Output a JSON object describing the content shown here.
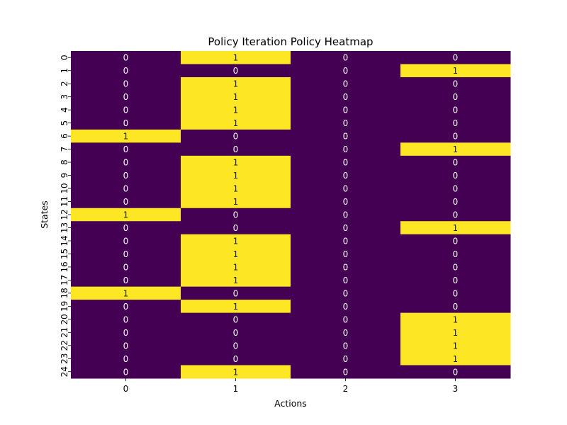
{
  "chart_data": {
    "type": "heatmap",
    "title": "Policy Iteration Policy Heatmap",
    "xlabel": "Actions",
    "ylabel": "States",
    "x_categories": [
      "0",
      "1",
      "2",
      "3"
    ],
    "y_categories": [
      "0",
      "1",
      "2",
      "3",
      "4",
      "5",
      "6",
      "7",
      "8",
      "9",
      "10",
      "11",
      "12",
      "13",
      "14",
      "15",
      "16",
      "17",
      "18",
      "19",
      "20",
      "21",
      "22",
      "23",
      "24"
    ],
    "values": [
      [
        0,
        1,
        0,
        0
      ],
      [
        0,
        0,
        0,
        1
      ],
      [
        0,
        1,
        0,
        0
      ],
      [
        0,
        1,
        0,
        0
      ],
      [
        0,
        1,
        0,
        0
      ],
      [
        0,
        1,
        0,
        0
      ],
      [
        1,
        0,
        0,
        0
      ],
      [
        0,
        0,
        0,
        1
      ],
      [
        0,
        1,
        0,
        0
      ],
      [
        0,
        1,
        0,
        0
      ],
      [
        0,
        1,
        0,
        0
      ],
      [
        0,
        1,
        0,
        0
      ],
      [
        1,
        0,
        0,
        0
      ],
      [
        0,
        0,
        0,
        1
      ],
      [
        0,
        1,
        0,
        0
      ],
      [
        0,
        1,
        0,
        0
      ],
      [
        0,
        1,
        0,
        0
      ],
      [
        0,
        1,
        0,
        0
      ],
      [
        1,
        0,
        0,
        0
      ],
      [
        0,
        1,
        0,
        0
      ],
      [
        0,
        0,
        0,
        1
      ],
      [
        0,
        0,
        0,
        1
      ],
      [
        0,
        0,
        0,
        1
      ],
      [
        0,
        0,
        0,
        1
      ],
      [
        0,
        1,
        0,
        0
      ]
    ],
    "annotated": true,
    "colorbar": false,
    "colors": {
      "low": "#440154",
      "high": "#fde725",
      "text_on_low": "#ffffff",
      "text_on_high": "#262626"
    }
  }
}
